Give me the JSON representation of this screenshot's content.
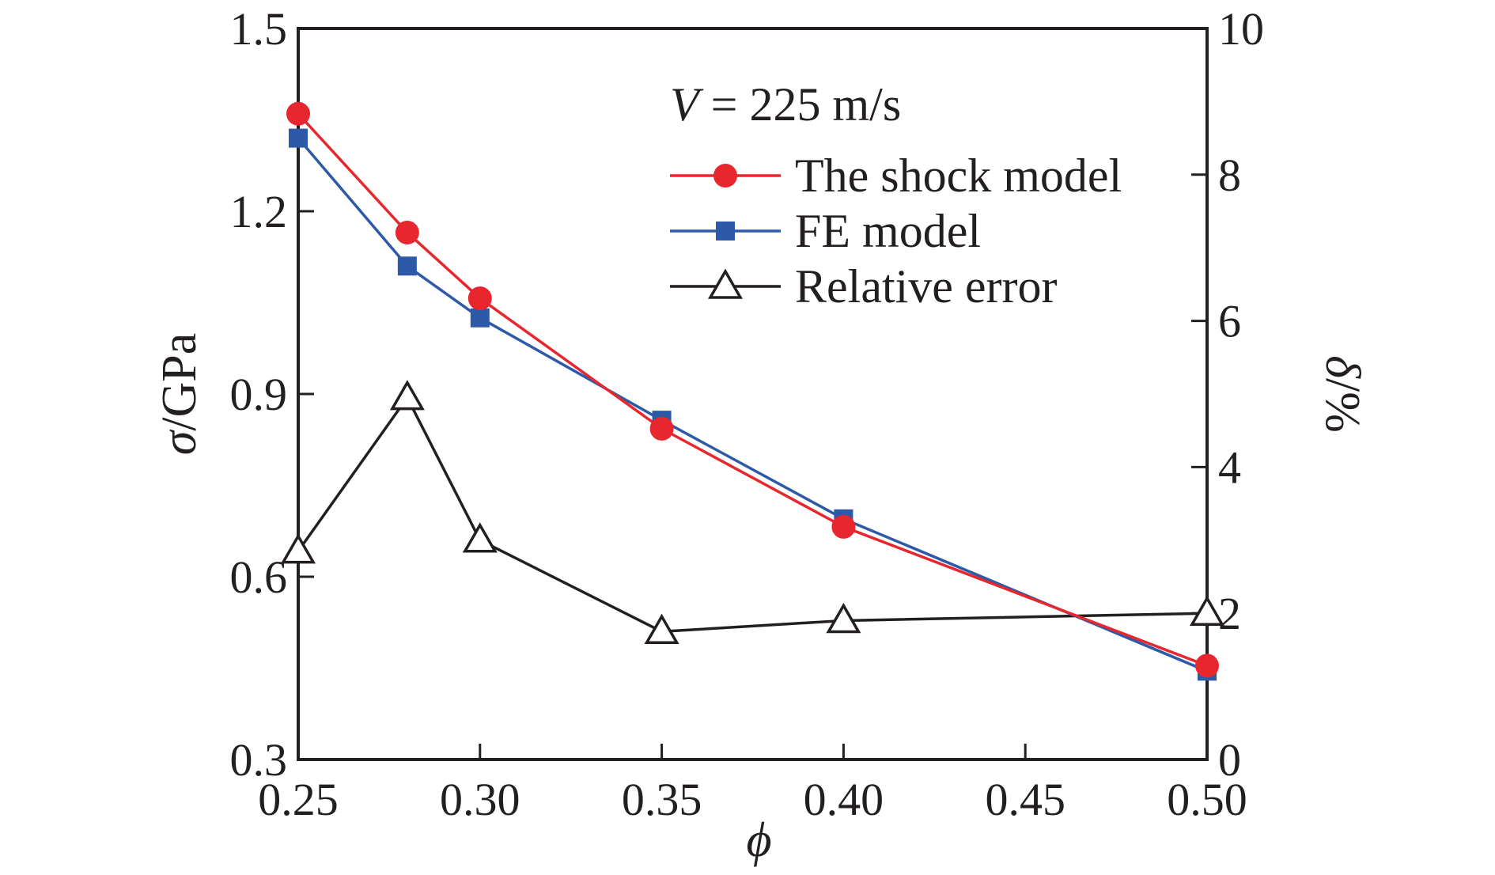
{
  "chart_data": {
    "type": "line",
    "title": "",
    "annotation": "V = 225 m/s",
    "annotation_var": "V",
    "annotation_rest": " = 225 m/s",
    "xlabel": "ϕ",
    "ylabel_left": "σ/GPa",
    "ylabel_left_symbol": "σ",
    "ylabel_left_unit": "/GPa",
    "ylabel_right": "δ/%",
    "ylabel_right_symbol": "δ",
    "ylabel_right_unit": "/%",
    "xlim": [
      0.25,
      0.5
    ],
    "ylim_left": [
      0.3,
      1.5
    ],
    "ylim_right": [
      0,
      10
    ],
    "x_ticks": [
      0.25,
      0.3,
      0.35,
      0.4,
      0.45,
      0.5
    ],
    "x_tick_labels": [
      "0.25",
      "0.30",
      "0.35",
      "0.40",
      "0.45",
      "0.50"
    ],
    "y_left_ticks": [
      0.3,
      0.6,
      0.9,
      1.2,
      1.5
    ],
    "y_left_tick_labels": [
      "0.3",
      "0.6",
      "0.9",
      "1.2",
      "1.5"
    ],
    "y_right_ticks": [
      0,
      2,
      4,
      6,
      8,
      10
    ],
    "y_right_tick_labels": [
      "0",
      "2",
      "4",
      "6",
      "8",
      "10"
    ],
    "legend_position": "top-right",
    "series": [
      {
        "name": "The shock model",
        "axis": "left",
        "marker": "circle",
        "color": "#e8262e",
        "x": [
          0.25,
          0.28,
          0.3,
          0.35,
          0.4,
          0.5
        ],
        "values": [
          1.36,
          1.165,
          1.057,
          0.843,
          0.682,
          0.454
        ]
      },
      {
        "name": "FE model",
        "axis": "left",
        "marker": "square",
        "color": "#2d5aa8",
        "x": [
          0.25,
          0.28,
          0.3,
          0.35,
          0.4,
          0.5
        ],
        "values": [
          1.32,
          1.11,
          1.025,
          0.857,
          0.695,
          0.445
        ]
      },
      {
        "name": "Relative error",
        "axis": "right",
        "marker": "triangle-open",
        "color": "#231f20",
        "x": [
          0.25,
          0.28,
          0.3,
          0.35,
          0.4,
          0.5
        ],
        "values": [
          2.85,
          4.95,
          3.0,
          1.75,
          1.9,
          2.0
        ]
      }
    ]
  }
}
